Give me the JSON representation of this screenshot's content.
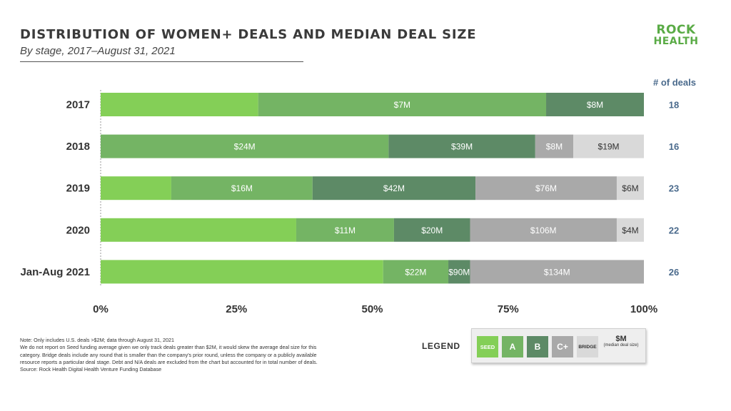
{
  "header": {
    "title": "DISTRIBUTION OF WOMEN+ DEALS AND MEDIAN DEAL SIZE",
    "subtitle": "By stage, 2017–August 31, 2021"
  },
  "logo": {
    "line1": "ROCK",
    "line2": "HEALTH"
  },
  "chart_data": {
    "type": "bar",
    "orientation": "horizontal",
    "stacked": true,
    "normalized": true,
    "categories": [
      "2017",
      "2018",
      "2019",
      "2020",
      "Jan-Aug 2021"
    ],
    "xlim": [
      0,
      100
    ],
    "x_ticks": [
      "0%",
      "25%",
      "50%",
      "75%",
      "100%"
    ],
    "right_column_header": "# of deals",
    "deal_counts": [
      18,
      16,
      23,
      22,
      26
    ],
    "series": [
      {
        "name": "SEED",
        "color": "#84cf57",
        "values": [
          29,
          0,
          13,
          36,
          52
        ],
        "labels": [
          "",
          "",
          "",
          "",
          ""
        ]
      },
      {
        "name": "A",
        "color": "#74b464",
        "values": [
          53,
          53,
          26,
          18,
          12
        ],
        "labels": [
          "$7M",
          "$24M",
          "$16M",
          "$11M",
          "$22M"
        ]
      },
      {
        "name": "B",
        "color": "#5d8a66",
        "values": [
          18,
          27,
          30,
          14,
          4
        ],
        "labels": [
          "$8M",
          "$39M",
          "$42M",
          "$20M",
          "$90M"
        ]
      },
      {
        "name": "C+",
        "color": "#a9a9a9",
        "values": [
          0,
          7,
          26,
          27,
          32
        ],
        "labels": [
          "",
          "$8M",
          "$76M",
          "$106M",
          "$134M"
        ]
      },
      {
        "name": "BRIDGE",
        "color": "#d9d9d9",
        "values": [
          0,
          13,
          5,
          5,
          0
        ],
        "labels": [
          "",
          "$19M",
          "$6M",
          "$4M",
          ""
        ]
      }
    ],
    "grid": false,
    "legend_position": "bottom-right"
  },
  "legend": {
    "label": "LEGEND",
    "items": [
      {
        "text": "SEED",
        "color": "#84cf57"
      },
      {
        "text": "A",
        "color": "#74b464"
      },
      {
        "text": "B",
        "color": "#5d8a66"
      },
      {
        "text": "C+",
        "color": "#a9a9a9"
      },
      {
        "text": "BRIDGE",
        "color": "#d9d9d9"
      }
    ],
    "median_symbol": "$M",
    "median_text": "(median deal size)"
  },
  "notes": [
    "Note: Only includes U.S. deals >$2M; data through August 31, 2021",
    "We do not report on Seed funding average given we only track deals greater than $2M, it would skew the average deal size for this",
    "category. Bridge deals include any round that is smaller than the company's prior round, unless the company or a publicly available",
    "resource reports a particular deal stage. Debt and N/A deals are excluded from the chart but accounted for in total number of deals.",
    "Source: Rock Health Digital Health Venture Funding Database"
  ]
}
